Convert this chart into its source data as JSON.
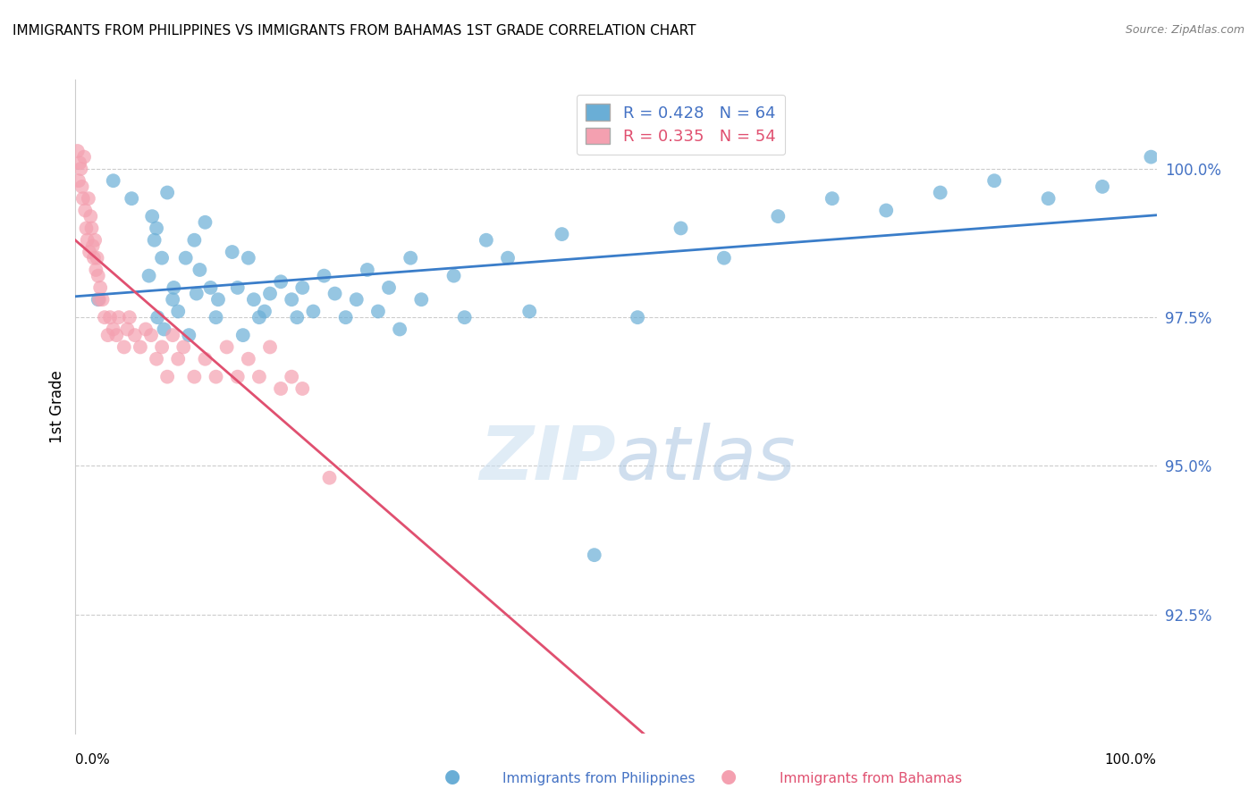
{
  "title": "IMMIGRANTS FROM PHILIPPINES VS IMMIGRANTS FROM BAHAMAS 1ST GRADE CORRELATION CHART",
  "source": "Source: ZipAtlas.com",
  "ylabel": "1st Grade",
  "ytick_values": [
    92.5,
    95.0,
    97.5,
    100.0
  ],
  "xlim": [
    0.0,
    100.0
  ],
  "ylim": [
    90.5,
    101.5
  ],
  "R_blue": 0.428,
  "N_blue": 64,
  "R_pink": 0.335,
  "N_pink": 54,
  "blue_color": "#6aaed6",
  "pink_color": "#f4a0b0",
  "trend_blue": "#3a7dc9",
  "trend_pink": "#e05070",
  "legend_label_blue": "Immigrants from Philippines",
  "legend_label_pink": "Immigrants from Bahamas",
  "blue_x": [
    2.1,
    3.5,
    5.2,
    6.8,
    7.1,
    7.3,
    7.5,
    7.6,
    8.0,
    8.2,
    8.5,
    9.0,
    9.1,
    9.5,
    10.2,
    10.5,
    11.0,
    11.2,
    11.5,
    12.0,
    12.5,
    13.0,
    13.2,
    14.5,
    15.0,
    15.5,
    16.0,
    16.5,
    17.0,
    17.5,
    18.0,
    19.0,
    20.0,
    20.5,
    21.0,
    22.0,
    23.0,
    24.0,
    25.0,
    26.0,
    27.0,
    28.0,
    29.0,
    30.0,
    31.0,
    32.0,
    35.0,
    36.0,
    38.0,
    40.0,
    42.0,
    45.0,
    48.0,
    52.0,
    56.0,
    60.0,
    65.0,
    70.0,
    75.0,
    80.0,
    85.0,
    90.0,
    95.0,
    99.5
  ],
  "blue_y": [
    97.8,
    99.8,
    99.5,
    98.2,
    99.2,
    98.8,
    99.0,
    97.5,
    98.5,
    97.3,
    99.6,
    97.8,
    98.0,
    97.6,
    98.5,
    97.2,
    98.8,
    97.9,
    98.3,
    99.1,
    98.0,
    97.5,
    97.8,
    98.6,
    98.0,
    97.2,
    98.5,
    97.8,
    97.5,
    97.6,
    97.9,
    98.1,
    97.8,
    97.5,
    98.0,
    97.6,
    98.2,
    97.9,
    97.5,
    97.8,
    98.3,
    97.6,
    98.0,
    97.3,
    98.5,
    97.8,
    98.2,
    97.5,
    98.8,
    98.5,
    97.6,
    98.9,
    93.5,
    97.5,
    99.0,
    98.5,
    99.2,
    99.5,
    99.3,
    99.6,
    99.8,
    99.5,
    99.7,
    100.2
  ],
  "pink_x": [
    0.2,
    0.3,
    0.4,
    0.5,
    0.6,
    0.7,
    0.8,
    0.9,
    1.0,
    1.1,
    1.2,
    1.3,
    1.4,
    1.5,
    1.6,
    1.7,
    1.8,
    1.9,
    2.0,
    2.1,
    2.2,
    2.3,
    2.5,
    2.7,
    3.0,
    3.2,
    3.5,
    3.8,
    4.0,
    4.5,
    4.8,
    5.0,
    5.5,
    6.0,
    6.5,
    7.0,
    7.5,
    8.0,
    8.5,
    9.0,
    9.5,
    10.0,
    11.0,
    12.0,
    13.0,
    14.0,
    15.0,
    16.0,
    17.0,
    18.0,
    19.0,
    20.0,
    21.0,
    23.5
  ],
  "pink_y": [
    100.3,
    99.8,
    100.1,
    100.0,
    99.7,
    99.5,
    100.2,
    99.3,
    99.0,
    98.8,
    99.5,
    98.6,
    99.2,
    99.0,
    98.7,
    98.5,
    98.8,
    98.3,
    98.5,
    98.2,
    97.8,
    98.0,
    97.8,
    97.5,
    97.2,
    97.5,
    97.3,
    97.2,
    97.5,
    97.0,
    97.3,
    97.5,
    97.2,
    97.0,
    97.3,
    97.2,
    96.8,
    97.0,
    96.5,
    97.2,
    96.8,
    97.0,
    96.5,
    96.8,
    96.5,
    97.0,
    96.5,
    96.8,
    96.5,
    97.0,
    96.3,
    96.5,
    96.3,
    94.8
  ]
}
